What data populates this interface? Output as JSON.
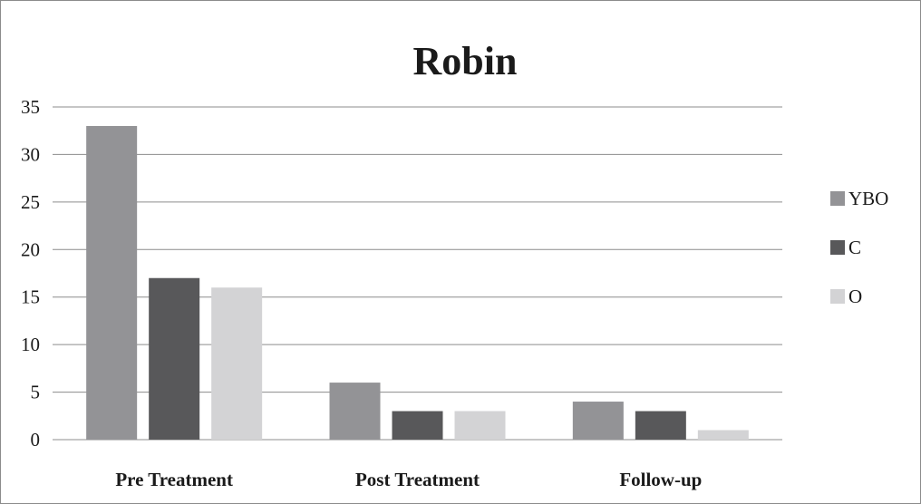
{
  "chart_data": {
    "type": "bar",
    "title": "Robin",
    "xlabel": "",
    "ylabel": "",
    "categories": [
      "Pre Treatment",
      "Post Treatment",
      "Follow-up"
    ],
    "series": [
      {
        "name": "YBO",
        "values": [
          33,
          6,
          4
        ],
        "color": "#939396"
      },
      {
        "name": "C",
        "values": [
          17,
          3,
          3
        ],
        "color": "#58585a"
      },
      {
        "name": "O",
        "values": [
          16,
          3,
          1
        ],
        "color": "#d3d3d5"
      }
    ],
    "ylim": [
      0,
      35
    ],
    "yticks": [
      0,
      5,
      10,
      15,
      20,
      25,
      30,
      35
    ],
    "grid": true,
    "legend_position": "right"
  }
}
